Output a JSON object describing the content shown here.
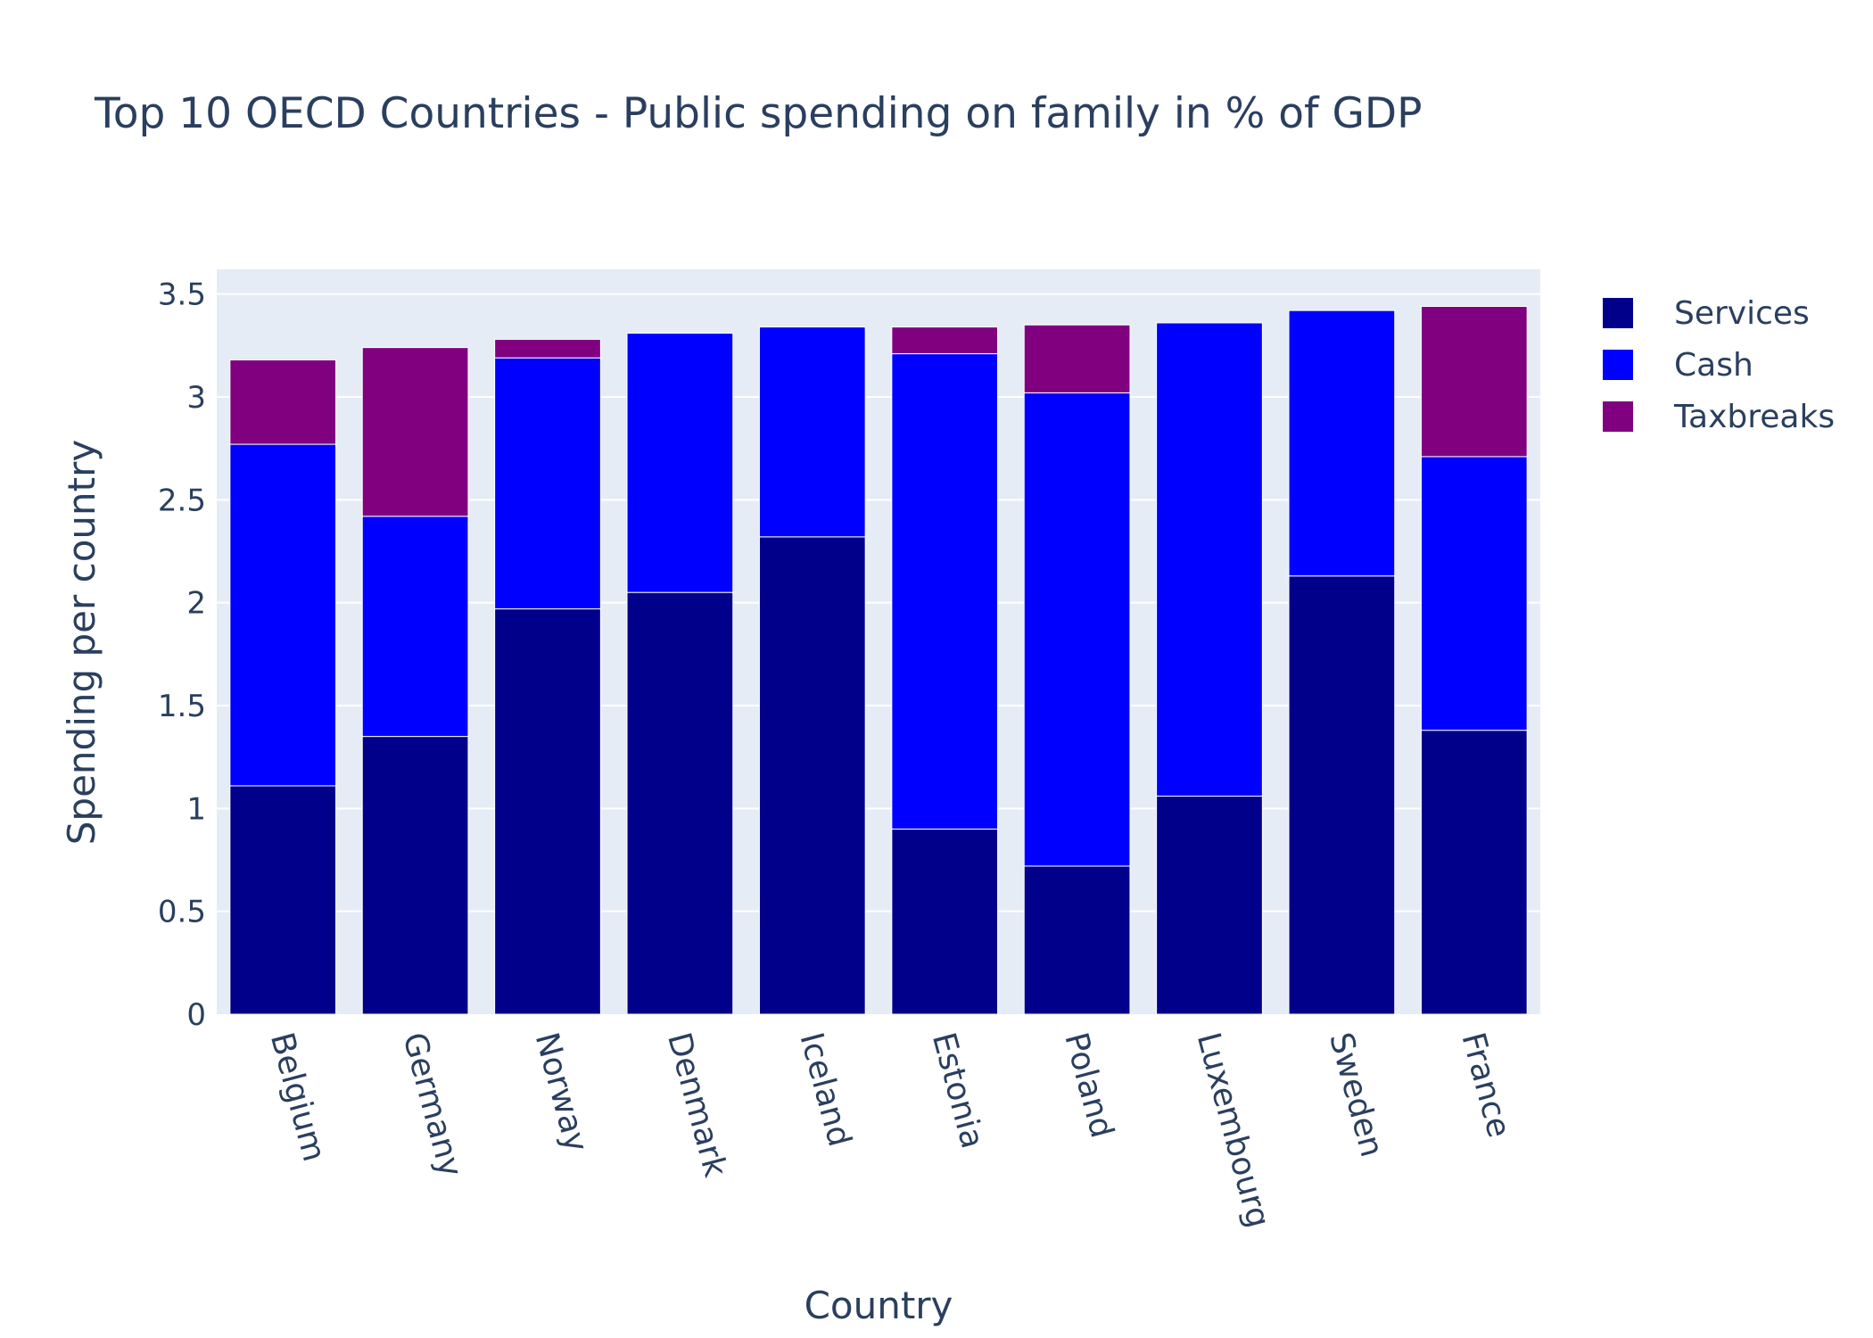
{
  "chart_data": {
    "type": "bar",
    "stacked": true,
    "title": "Top 10 OECD Countries - Public spending on family in % of GDP",
    "xlabel": "Country",
    "ylabel": "Spending per country",
    "ylim": [
      0,
      3.62
    ],
    "yticks": [
      0,
      0.5,
      1,
      1.5,
      2,
      2.5,
      3,
      3.5
    ],
    "ytick_labels": [
      "0",
      "0.5",
      "1",
      "1.5",
      "2",
      "2.5",
      "3",
      "3.5"
    ],
    "grid": true,
    "legend_position": "top-right",
    "categories": [
      "Belgium",
      "Germany",
      "Norway",
      "Denmark",
      "Iceland",
      "Estonia",
      "Poland",
      "Luxembourg",
      "Sweden",
      "France"
    ],
    "series": [
      {
        "name": "Services",
        "color": "#00008b",
        "values": [
          1.11,
          1.35,
          1.97,
          2.05,
          2.32,
          0.9,
          0.72,
          1.06,
          2.13,
          1.38
        ]
      },
      {
        "name": "Cash",
        "color": "#0000ff",
        "values": [
          1.66,
          1.07,
          1.22,
          1.26,
          1.02,
          2.31,
          2.3,
          2.3,
          1.29,
          1.33
        ]
      },
      {
        "name": "Taxbreaks",
        "color": "#800080",
        "values": [
          0.41,
          0.82,
          0.09,
          0.0,
          0.0,
          0.13,
          0.33,
          0.0,
          0.0,
          0.73
        ]
      }
    ]
  }
}
